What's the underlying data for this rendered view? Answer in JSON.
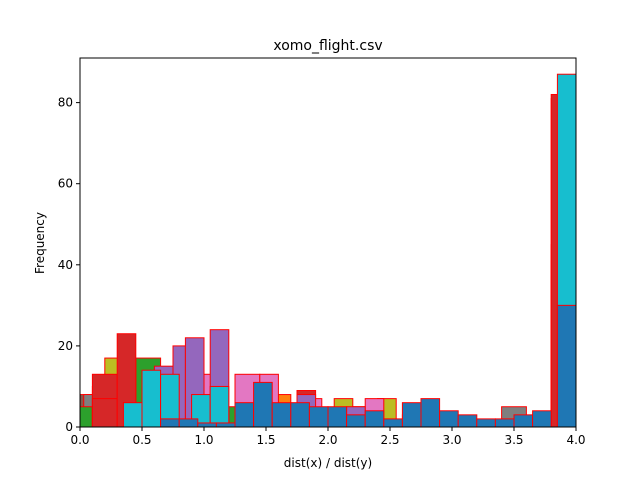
{
  "chart_data": {
    "type": "histogram",
    "title": "xomo_flight.csv",
    "xlabel": "dist(x) / dist(y)",
    "ylabel": "Frequency",
    "xlim": [
      0.0,
      4.0
    ],
    "ylim": [
      0,
      91
    ],
    "x_ticks": [
      "0.0",
      "0.5",
      "1.0",
      "1.5",
      "2.0",
      "2.5",
      "3.0",
      "3.5",
      "4.0"
    ],
    "y_ticks": [
      "0",
      "20",
      "40",
      "60",
      "80"
    ],
    "y_tick_values": [
      0,
      20,
      40,
      60,
      80
    ],
    "x_tick_values": [
      0.0,
      0.5,
      1.0,
      1.5,
      2.0,
      2.5,
      3.0,
      3.5,
      4.0
    ],
    "edge_color": "#ff0000",
    "series": [
      {
        "color": "#8c564b",
        "bins": [
          [
            0.0,
            0.1,
            8
          ],
          [
            0.95,
            1.15,
            7
          ],
          [
            1.9,
            2.1,
            4
          ],
          [
            3.8,
            3.95,
            45
          ]
        ]
      },
      {
        "color": "#7f7f7f",
        "bins": [
          [
            0.03,
            0.2,
            8
          ],
          [
            1.3,
            1.5,
            11
          ],
          [
            2.6,
            2.8,
            3
          ],
          [
            3.4,
            3.6,
            5
          ],
          [
            3.8,
            3.95,
            41
          ]
        ]
      },
      {
        "color": "#2ca02c",
        "bins": [
          [
            0.0,
            0.1,
            5
          ],
          [
            0.1,
            0.3,
            10
          ],
          [
            0.45,
            0.65,
            17
          ],
          [
            1.2,
            1.35,
            5
          ],
          [
            3.8,
            3.95,
            37
          ]
        ]
      },
      {
        "color": "#bcbd22",
        "bins": [
          [
            0.2,
            0.35,
            17
          ],
          [
            0.75,
            0.9,
            11
          ],
          [
            2.05,
            2.2,
            7
          ],
          [
            2.4,
            2.55,
            7
          ],
          [
            3.85,
            4.0,
            77
          ]
        ]
      },
      {
        "color": "#d62728",
        "bins": [
          [
            0.1,
            0.3,
            13
          ],
          [
            0.55,
            0.7,
            8
          ],
          [
            1.75,
            1.9,
            9
          ],
          [
            3.8,
            3.95,
            81
          ]
        ]
      },
      {
        "color": "#ff7f0e",
        "bins": [
          [
            1.3,
            1.5,
            9
          ],
          [
            1.55,
            1.7,
            8
          ],
          [
            2.2,
            2.35,
            5
          ],
          [
            3.85,
            4.0,
            40
          ]
        ]
      },
      {
        "color": "#e377c2",
        "bins": [
          [
            0.8,
            0.95,
            10
          ],
          [
            1.0,
            1.15,
            13
          ],
          [
            1.25,
            1.45,
            13
          ],
          [
            1.45,
            1.6,
            13
          ],
          [
            1.8,
            1.95,
            7
          ],
          [
            2.3,
            2.45,
            7
          ]
        ]
      },
      {
        "color": "#9467bd",
        "bins": [
          [
            0.6,
            0.75,
            15
          ],
          [
            0.75,
            0.85,
            20
          ],
          [
            0.85,
            1.0,
            22
          ],
          [
            1.05,
            1.2,
            24
          ],
          [
            1.75,
            1.9,
            8
          ],
          [
            2.15,
            2.3,
            5
          ],
          [
            3.85,
            4.0,
            41
          ]
        ]
      },
      {
        "color": "#d62728",
        "bins": [
          [
            0.1,
            0.3,
            7
          ],
          [
            0.3,
            0.45,
            23
          ],
          [
            3.8,
            3.95,
            82
          ]
        ]
      },
      {
        "color": "#17becf",
        "bins": [
          [
            0.35,
            0.55,
            6
          ],
          [
            0.5,
            0.65,
            14
          ],
          [
            0.65,
            0.8,
            13
          ],
          [
            0.9,
            1.05,
            8
          ],
          [
            1.05,
            1.2,
            10
          ],
          [
            1.8,
            1.95,
            3
          ],
          [
            3.85,
            4.0,
            87
          ]
        ]
      },
      {
        "color": "#1f77b4",
        "bins": [
          [
            0.65,
            0.8,
            2
          ],
          [
            0.8,
            0.95,
            2
          ],
          [
            0.95,
            1.1,
            1
          ],
          [
            1.1,
            1.25,
            1
          ],
          [
            1.25,
            1.4,
            6
          ],
          [
            1.4,
            1.55,
            11
          ],
          [
            1.55,
            1.7,
            6
          ],
          [
            1.7,
            1.85,
            6
          ],
          [
            1.85,
            2.0,
            5
          ],
          [
            2.0,
            2.15,
            5
          ],
          [
            2.15,
            2.3,
            3
          ],
          [
            2.3,
            2.45,
            4
          ],
          [
            2.45,
            2.6,
            2
          ],
          [
            2.6,
            2.75,
            6
          ],
          [
            2.75,
            2.9,
            7
          ],
          [
            2.9,
            3.05,
            4
          ],
          [
            3.05,
            3.2,
            3
          ],
          [
            3.2,
            3.35,
            2
          ],
          [
            3.35,
            3.5,
            2
          ],
          [
            3.5,
            3.65,
            3
          ],
          [
            3.65,
            3.8,
            4
          ],
          [
            3.85,
            4.0,
            30
          ]
        ]
      }
    ]
  }
}
